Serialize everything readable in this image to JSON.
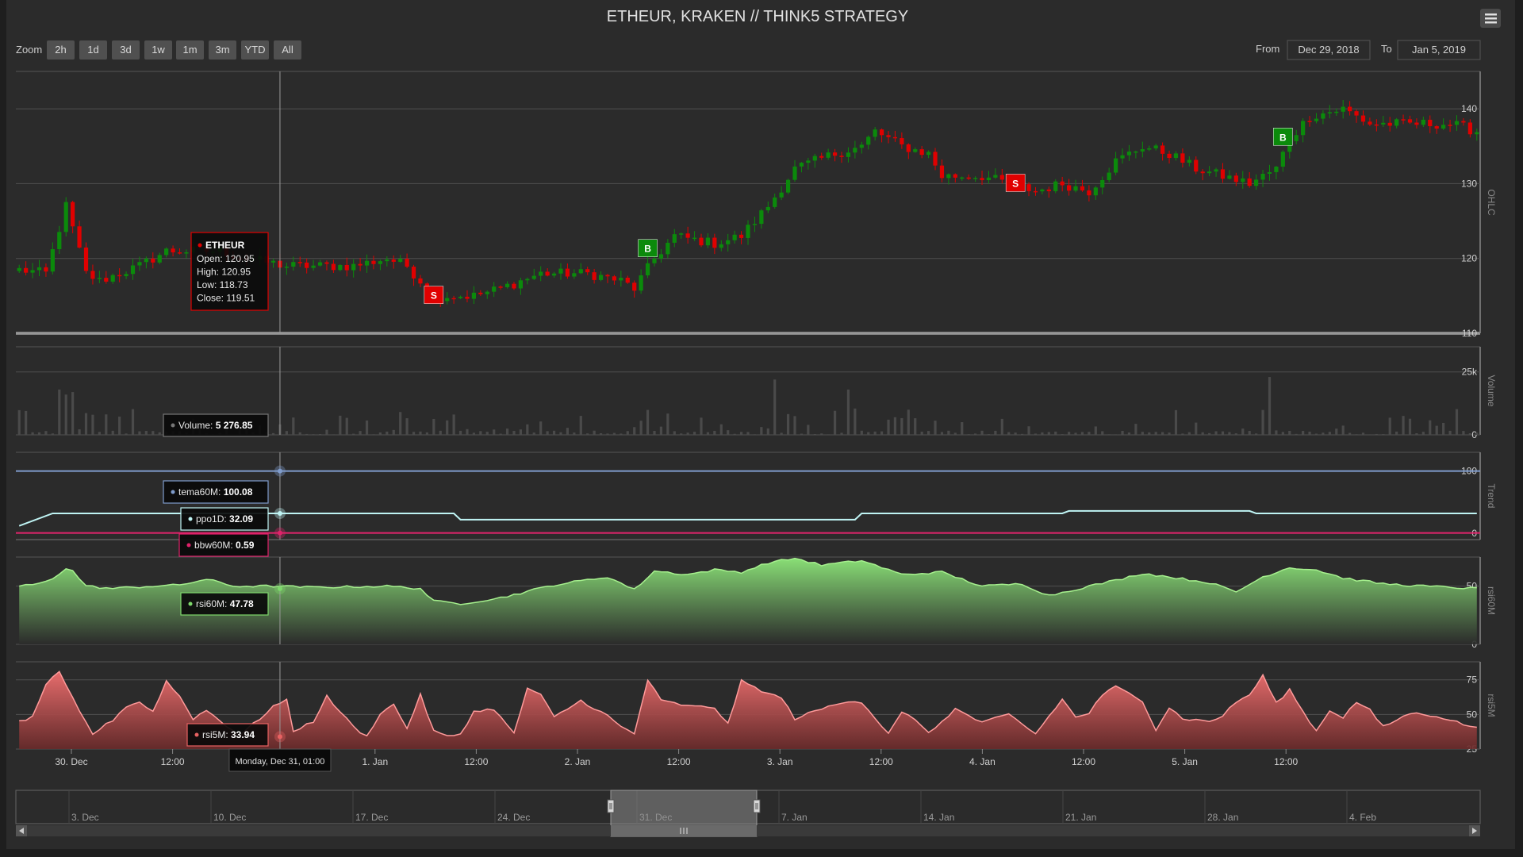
{
  "title": "ETHEUR, KRAKEN // THINK5 STRATEGY",
  "menu_icon": "hamburger-menu-icon",
  "zoom": {
    "label": "Zoom",
    "buttons": [
      "2h",
      "1d",
      "3d",
      "1w",
      "1m",
      "3m",
      "YTD",
      "All"
    ]
  },
  "range": {
    "from_label": "From",
    "from_value": "Dec 29, 2018",
    "to_label": "To",
    "to_value": "Jan 5, 2019"
  },
  "colors": {
    "background": "#2b2b2b",
    "page": "#1e1e1e",
    "grid": "#505050",
    "up": "#0b8a0b",
    "down": "#e00000",
    "volume": "#4a4a4a",
    "tema": "#7f9ccc",
    "ppo": "#bff4f4",
    "bbw": "#e0226a",
    "rsi60": "#7ed86b",
    "rsi5": "#e86262",
    "text": "#d0d0d0",
    "axis_label": "#888888"
  },
  "chart_data": [
    {
      "type": "candlestick",
      "pane_label": "OHLC",
      "series_name": "ETHEUR",
      "ylim": [
        110,
        145
      ],
      "yticks": [
        110,
        120,
        130,
        140
      ],
      "x_labels": [
        "30. Dec",
        "12:00",
        "12:00",
        "1. Jan",
        "12:00",
        "2. Jan",
        "12:00",
        "3. Jan",
        "12:00",
        "4. Jan",
        "12:00",
        "5. Jan",
        "12:00"
      ],
      "waypoints": [
        [
          0,
          118.5
        ],
        [
          4,
          118
        ],
        [
          7,
          127
        ],
        [
          10,
          118
        ],
        [
          12,
          117
        ],
        [
          18,
          119
        ],
        [
          22,
          121
        ],
        [
          30,
          121
        ],
        [
          34,
          120
        ],
        [
          40,
          119
        ],
        [
          50,
          119
        ],
        [
          55,
          120
        ],
        [
          58,
          119
        ],
        [
          62,
          115
        ],
        [
          68,
          115
        ],
        [
          72,
          116
        ],
        [
          78,
          118
        ],
        [
          85,
          118
        ],
        [
          90,
          117
        ],
        [
          92,
          116
        ],
        [
          95,
          120
        ],
        [
          98,
          123
        ],
        [
          104,
          122
        ],
        [
          108,
          123
        ],
        [
          112,
          127
        ],
        [
          116,
          132
        ],
        [
          122,
          134
        ],
        [
          126,
          135
        ],
        [
          128,
          137
        ],
        [
          132,
          135
        ],
        [
          136,
          134
        ],
        [
          138,
          131
        ],
        [
          144,
          131
        ],
        [
          148,
          130
        ],
        [
          152,
          129
        ],
        [
          156,
          130
        ],
        [
          160,
          129
        ],
        [
          164,
          133
        ],
        [
          168,
          135
        ],
        [
          172,
          134
        ],
        [
          176,
          132
        ],
        [
          180,
          131
        ],
        [
          184,
          130
        ],
        [
          188,
          132
        ],
        [
          190,
          136
        ],
        [
          193,
          139
        ],
        [
          198,
          140
        ],
        [
          202,
          138
        ],
        [
          208,
          138
        ],
        [
          214,
          138
        ],
        [
          218,
          137
        ]
      ],
      "tooltip": {
        "name": "ETHEUR",
        "open_label": "Open:",
        "open": "120.95",
        "high_label": "High:",
        "high": "120.95",
        "low_label": "Low:",
        "low": "118.73",
        "close_label": "Close:",
        "close": "119.51"
      },
      "flags": [
        {
          "text": "S",
          "kind": "sell",
          "candle": 62
        },
        {
          "text": "B",
          "kind": "buy",
          "candle": 94
        },
        {
          "text": "S",
          "kind": "sell",
          "candle": 149
        },
        {
          "text": "B",
          "kind": "buy",
          "candle": 189
        }
      ]
    },
    {
      "type": "bar",
      "pane_label": "Volume",
      "series_name": "Volume",
      "ylim": [
        0,
        35000
      ],
      "yticks": [
        0,
        25000
      ],
      "ytick_labels": [
        "0",
        "25k"
      ],
      "tooltip": {
        "label": "Volume:",
        "value": "5 276.85"
      },
      "spikes": [
        {
          "at": 6,
          "value": 18000
        },
        {
          "at": 7,
          "value": 16000
        },
        {
          "at": 8,
          "value": 17000
        },
        {
          "at": 113,
          "value": 22000
        },
        {
          "at": 124,
          "value": 18000
        },
        {
          "at": 187,
          "value": 23000
        }
      ]
    },
    {
      "type": "line",
      "pane_label": "Trend",
      "ylim": [
        -10,
        130
      ],
      "yticks": [
        0,
        100
      ],
      "series": [
        {
          "name": "tema60M",
          "tooltip_value": "100.08",
          "level": 100
        },
        {
          "name": "ppo1D",
          "tooltip_value": "32.09",
          "steps": [
            [
              0,
              12
            ],
            [
              5,
              32
            ],
            [
              65,
              32
            ],
            [
              66,
              22
            ],
            [
              125,
              22
            ],
            [
              126,
              32
            ],
            [
              156,
              32
            ],
            [
              157,
              36
            ],
            [
              184,
              36
            ],
            [
              185,
              32
            ],
            [
              218,
              32
            ]
          ]
        },
        {
          "name": "bbw60M",
          "tooltip_value": "0.59",
          "level": 0.59
        }
      ]
    },
    {
      "type": "area",
      "pane_label": "rsi60M",
      "series_name": "rsi60M",
      "ylim": [
        0,
        75
      ],
      "yticks": [
        0,
        50
      ],
      "tooltip_value": "47.78",
      "waypoints": [
        [
          0,
          50
        ],
        [
          3,
          52
        ],
        [
          5,
          57
        ],
        [
          7,
          65
        ],
        [
          8,
          63
        ],
        [
          10,
          50
        ],
        [
          14,
          48
        ],
        [
          20,
          50
        ],
        [
          24,
          51
        ],
        [
          28,
          56
        ],
        [
          32,
          50
        ],
        [
          38,
          50
        ],
        [
          44,
          49
        ],
        [
          55,
          50
        ],
        [
          60,
          48
        ],
        [
          62,
          37
        ],
        [
          66,
          35
        ],
        [
          72,
          40
        ],
        [
          80,
          51
        ],
        [
          88,
          58
        ],
        [
          92,
          47
        ],
        [
          95,
          63
        ],
        [
          100,
          60
        ],
        [
          104,
          64
        ],
        [
          108,
          62
        ],
        [
          112,
          70
        ],
        [
          116,
          74
        ],
        [
          120,
          68
        ],
        [
          126,
          72
        ],
        [
          128,
          68
        ],
        [
          132,
          60
        ],
        [
          138,
          62
        ],
        [
          144,
          50
        ],
        [
          150,
          52
        ],
        [
          154,
          42
        ],
        [
          160,
          50
        ],
        [
          164,
          55
        ],
        [
          168,
          61
        ],
        [
          172,
          58
        ],
        [
          178,
          53
        ],
        [
          182,
          45
        ],
        [
          186,
          58
        ],
        [
          190,
          66
        ],
        [
          194,
          64
        ],
        [
          198,
          57
        ],
        [
          204,
          52
        ],
        [
          210,
          50
        ],
        [
          218,
          48
        ]
      ]
    },
    {
      "type": "area",
      "pane_label": "rsi5M",
      "series_name": "rsi5M",
      "ylim": [
        25,
        88
      ],
      "yticks": [
        25,
        50,
        75
      ],
      "tooltip_value": "33.94",
      "waypoints": [
        [
          0,
          45
        ],
        [
          2,
          48
        ],
        [
          4,
          72
        ],
        [
          6,
          80
        ],
        [
          9,
          52
        ],
        [
          11,
          36
        ],
        [
          14,
          46
        ],
        [
          16,
          56
        ],
        [
          18,
          59
        ],
        [
          20,
          52
        ],
        [
          22,
          74
        ],
        [
          24,
          63
        ],
        [
          26,
          47
        ],
        [
          28,
          53
        ],
        [
          31,
          42
        ],
        [
          33,
          35
        ],
        [
          36,
          47
        ],
        [
          38,
          56
        ],
        [
          40,
          60
        ],
        [
          41,
          38
        ],
        [
          44,
          45
        ],
        [
          46,
          63
        ],
        [
          50,
          41
        ],
        [
          52,
          34
        ],
        [
          54,
          51
        ],
        [
          56,
          57
        ],
        [
          58,
          40
        ],
        [
          60,
          64
        ],
        [
          62,
          38
        ],
        [
          64,
          34
        ],
        [
          66,
          36
        ],
        [
          68,
          52
        ],
        [
          71,
          54
        ],
        [
          74,
          36
        ],
        [
          76,
          69
        ],
        [
          78,
          64
        ],
        [
          80,
          48
        ],
        [
          84,
          60
        ],
        [
          88,
          49
        ],
        [
          90,
          41
        ],
        [
          92,
          36
        ],
        [
          94,
          75
        ],
        [
          96,
          60
        ],
        [
          100,
          56
        ],
        [
          104,
          55
        ],
        [
          106,
          43
        ],
        [
          108,
          74
        ],
        [
          112,
          65
        ],
        [
          114,
          62
        ],
        [
          116,
          47
        ],
        [
          120,
          54
        ],
        [
          124,
          60
        ],
        [
          126,
          59
        ],
        [
          130,
          36
        ],
        [
          132,
          51
        ],
        [
          134,
          47
        ],
        [
          136,
          36
        ],
        [
          140,
          54
        ],
        [
          144,
          44
        ],
        [
          148,
          50
        ],
        [
          152,
          36
        ],
        [
          156,
          61
        ],
        [
          158,
          48
        ],
        [
          160,
          51
        ],
        [
          162,
          64
        ],
        [
          164,
          70
        ],
        [
          168,
          60
        ],
        [
          170,
          39
        ],
        [
          172,
          55
        ],
        [
          174,
          47
        ],
        [
          178,
          45
        ],
        [
          180,
          49
        ],
        [
          182,
          59
        ],
        [
          184,
          64
        ],
        [
          186,
          78
        ],
        [
          188,
          58
        ],
        [
          190,
          68
        ],
        [
          192,
          52
        ],
        [
          194,
          38
        ],
        [
          196,
          53
        ],
        [
          198,
          48
        ],
        [
          200,
          59
        ],
        [
          202,
          53
        ],
        [
          204,
          41
        ],
        [
          208,
          51
        ],
        [
          212,
          49
        ],
        [
          216,
          43
        ],
        [
          218,
          40
        ]
      ]
    }
  ],
  "crosshair": {
    "candle": 39,
    "label": "Monday, Dec 31, 01:00"
  },
  "navigator": {
    "labels": [
      "3. Dec",
      "10. Dec",
      "17. Dec",
      "24. Dec",
      "31. Dec",
      "7. Jan",
      "14. Jan",
      "21. Jan",
      "28. Jan",
      "4. Feb"
    ]
  }
}
